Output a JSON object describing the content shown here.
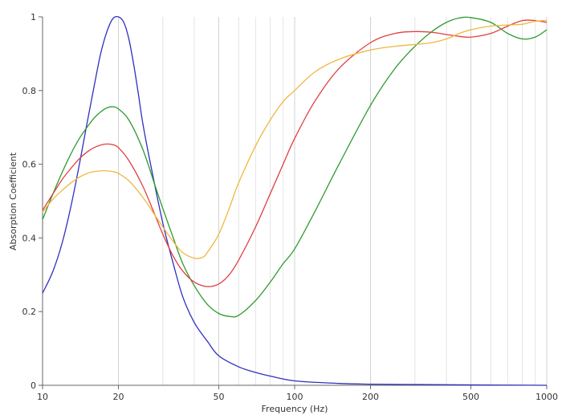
{
  "chart_data": {
    "type": "line",
    "xlabel": "Frequency (Hz)",
    "ylabel": "Absorption Coefficient",
    "x_scale": "log",
    "xlim": [
      10,
      1000
    ],
    "ylim": [
      0,
      1
    ],
    "x_ticks": [
      {
        "value": 10,
        "label": "10"
      },
      {
        "value": 20,
        "label": "20"
      },
      {
        "value": 50,
        "label": "50"
      },
      {
        "value": 100,
        "label": "100"
      },
      {
        "value": 200,
        "label": "200"
      },
      {
        "value": 500,
        "label": "500"
      },
      {
        "value": 1000,
        "label": "1000"
      }
    ],
    "y_ticks": [
      {
        "value": 0,
        "label": "0"
      },
      {
        "value": 0.2,
        "label": "0.2"
      },
      {
        "value": 0.4,
        "label": "0.4"
      },
      {
        "value": 0.6,
        "label": "0.6"
      },
      {
        "value": 0.8,
        "label": "0.8"
      },
      {
        "value": 1,
        "label": "1"
      }
    ],
    "minor_x_gridlines": [
      30,
      40,
      60,
      70,
      80,
      90,
      300,
      400,
      600,
      700,
      800,
      900
    ],
    "grid": true,
    "series": [
      {
        "color": "#2f2fbf",
        "x": [
          10,
          11,
          12,
          13,
          14,
          15,
          16,
          17,
          18,
          19,
          20,
          21,
          22,
          23,
          24,
          25,
          27,
          30,
          33,
          36,
          40,
          45,
          50,
          60,
          70,
          80,
          100,
          150,
          200,
          300,
          500,
          1000
        ],
        "y": [
          0.25,
          0.31,
          0.39,
          0.49,
          0.6,
          0.71,
          0.81,
          0.9,
          0.96,
          0.995,
          1.0,
          0.985,
          0.94,
          0.87,
          0.79,
          0.71,
          0.59,
          0.44,
          0.33,
          0.24,
          0.17,
          0.12,
          0.08,
          0.05,
          0.035,
          0.025,
          0.012,
          0.005,
          0.003,
          0.002,
          0.001,
          0.0
        ]
      },
      {
        "color": "#2e9b2e",
        "x": [
          10,
          11,
          12,
          13,
          14,
          15,
          16,
          17,
          18,
          19,
          20,
          22,
          25,
          28,
          30,
          33,
          36,
          40,
          45,
          50,
          55,
          60,
          70,
          80,
          90,
          100,
          120,
          150,
          200,
          250,
          300,
          350,
          400,
          450,
          500,
          600,
          700,
          800,
          900,
          1000
        ],
        "y": [
          0.45,
          0.52,
          0.58,
          0.63,
          0.67,
          0.7,
          0.725,
          0.742,
          0.753,
          0.756,
          0.75,
          0.72,
          0.64,
          0.54,
          0.48,
          0.4,
          0.33,
          0.27,
          0.22,
          0.195,
          0.187,
          0.19,
          0.23,
          0.28,
          0.33,
          0.37,
          0.47,
          0.6,
          0.76,
          0.86,
          0.92,
          0.96,
          0.985,
          0.997,
          0.998,
          0.985,
          0.955,
          0.94,
          0.945,
          0.965
        ]
      },
      {
        "color": "#e04040",
        "x": [
          10,
          11,
          12,
          13,
          14,
          15,
          16,
          17,
          18,
          19,
          20,
          22,
          25,
          28,
          30,
          33,
          36,
          40,
          45,
          50,
          55,
          60,
          70,
          80,
          90,
          100,
          120,
          150,
          200,
          250,
          300,
          350,
          400,
          450,
          500,
          600,
          700,
          800,
          900,
          1000
        ],
        "y": [
          0.475,
          0.52,
          0.56,
          0.59,
          0.615,
          0.633,
          0.645,
          0.652,
          0.655,
          0.653,
          0.645,
          0.61,
          0.54,
          0.46,
          0.41,
          0.35,
          0.31,
          0.28,
          0.268,
          0.275,
          0.3,
          0.34,
          0.43,
          0.52,
          0.6,
          0.67,
          0.77,
          0.86,
          0.93,
          0.955,
          0.96,
          0.958,
          0.952,
          0.947,
          0.945,
          0.955,
          0.975,
          0.99,
          0.99,
          0.985
        ]
      },
      {
        "color": "#f0b840",
        "x": [
          10,
          11,
          12,
          13,
          14,
          15,
          16,
          17,
          18,
          19,
          20,
          22,
          25,
          28,
          30,
          33,
          36,
          40,
          43,
          45,
          50,
          55,
          60,
          70,
          80,
          90,
          100,
          120,
          150,
          200,
          250,
          300,
          350,
          400,
          450,
          500,
          600,
          700,
          800,
          900,
          1000
        ],
        "y": [
          0.47,
          0.505,
          0.53,
          0.55,
          0.565,
          0.575,
          0.58,
          0.582,
          0.582,
          0.58,
          0.575,
          0.555,
          0.51,
          0.46,
          0.43,
          0.39,
          0.36,
          0.345,
          0.347,
          0.36,
          0.41,
          0.48,
          0.55,
          0.65,
          0.72,
          0.77,
          0.8,
          0.85,
          0.885,
          0.91,
          0.92,
          0.925,
          0.93,
          0.94,
          0.955,
          0.965,
          0.975,
          0.978,
          0.98,
          0.988,
          0.99
        ]
      }
    ]
  }
}
